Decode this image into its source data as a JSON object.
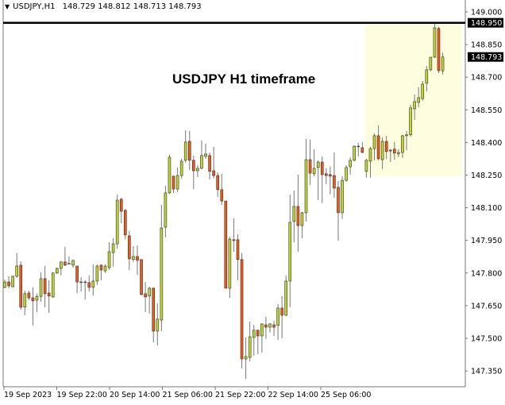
{
  "header": {
    "symbol": "USDJPY,H1",
    "open": "148.729",
    "high": "148.812",
    "low": "148.713",
    "close": "148.793"
  },
  "chart_data": {
    "type": "candlestick",
    "title": "USDJPY H1 timeframe",
    "symbol": "USDJPY",
    "timeframe": "H1",
    "ylim": [
      147.265,
      149.055
    ],
    "y_ticks": [
      "149.000",
      "148.850",
      "148.700",
      "148.550",
      "148.400",
      "148.250",
      "148.100",
      "147.950",
      "147.800",
      "147.650",
      "147.500",
      "147.350"
    ],
    "x_tick_labels": [
      "19 Sep 2023",
      "19 Sep 22:00",
      "20 Sep 14:00",
      "21 Sep 06:00",
      "21 Sep 22:00",
      "22 Sep 14:00",
      "25 Sep 06:00"
    ],
    "horizontal_line": {
      "price": 148.95,
      "label": "148.950",
      "color": "#000000"
    },
    "current_price_label": "148.793",
    "highlight_zone": {
      "price_low": 148.245,
      "price_high": 148.945,
      "bar_start": 90,
      "bar_end": 114,
      "color": "#fffde0"
    },
    "colors": {
      "bull": "#bfd72a",
      "bear": "#f05a14",
      "outline": "#333333",
      "wick": "#777777"
    },
    "ohlc": [
      [
        147.734,
        147.77,
        147.73,
        147.759
      ],
      [
        147.759,
        147.785,
        147.73,
        147.741
      ],
      [
        147.737,
        147.789,
        147.734,
        147.785
      ],
      [
        147.785,
        147.891,
        147.778,
        147.832
      ],
      [
        147.836,
        147.854,
        147.632,
        147.643
      ],
      [
        147.643,
        147.719,
        147.606,
        147.705
      ],
      [
        147.708,
        147.719,
        147.675,
        147.686
      ],
      [
        147.686,
        147.734,
        147.559,
        147.672
      ],
      [
        147.675,
        147.705,
        147.621,
        147.693
      ],
      [
        147.693,
        147.803,
        147.668,
        147.774
      ],
      [
        147.774,
        147.832,
        147.643,
        147.705
      ],
      [
        147.708,
        147.767,
        147.617,
        147.694
      ],
      [
        147.69,
        147.803,
        147.686,
        147.8
      ],
      [
        147.8,
        147.825,
        147.796,
        147.821
      ],
      [
        147.821,
        147.854,
        147.789,
        147.851
      ],
      [
        147.851,
        147.92,
        147.832,
        147.836
      ],
      [
        147.843,
        147.876,
        147.84,
        147.844
      ],
      [
        147.836,
        147.862,
        147.825,
        147.858
      ],
      [
        147.832,
        147.832,
        147.708,
        147.759
      ],
      [
        147.759,
        147.781,
        147.716,
        147.759
      ],
      [
        147.759,
        147.767,
        147.679,
        147.758
      ],
      [
        147.756,
        147.789,
        147.716,
        147.734
      ],
      [
        147.734,
        147.84,
        147.697,
        147.763
      ],
      [
        147.763,
        147.84,
        147.745,
        147.832
      ],
      [
        147.836,
        147.84,
        147.767,
        147.814
      ],
      [
        147.81,
        147.84,
        147.8,
        147.832
      ],
      [
        147.825,
        147.942,
        147.814,
        147.898
      ],
      [
        147.894,
        147.96,
        147.829,
        147.934
      ],
      [
        147.934,
        148.161,
        147.912,
        148.135
      ],
      [
        148.139,
        148.146,
        148.029,
        148.084
      ],
      [
        148.088,
        148.095,
        147.956,
        147.975
      ],
      [
        147.971,
        147.993,
        147.814,
        147.865
      ],
      [
        147.862,
        147.924,
        147.851,
        147.876
      ],
      [
        147.876,
        147.927,
        147.792,
        147.858
      ],
      [
        147.862,
        147.862,
        147.697,
        147.701
      ],
      [
        147.705,
        147.759,
        147.621,
        147.69
      ],
      [
        147.694,
        147.737,
        147.613,
        147.73
      ],
      [
        147.73,
        147.734,
        147.482,
        147.533
      ],
      [
        147.533,
        147.661,
        147.467,
        147.588
      ],
      [
        147.584,
        148.113,
        147.533,
        148.007
      ],
      [
        148.011,
        148.201,
        147.964,
        148.168
      ],
      [
        148.168,
        148.343,
        148.164,
        148.332
      ],
      [
        148.245,
        148.248,
        148.168,
        148.186
      ],
      [
        148.186,
        148.285,
        148.172,
        148.248
      ],
      [
        148.248,
        148.325,
        148.234,
        148.314
      ],
      [
        148.318,
        148.456,
        148.307,
        148.402
      ],
      [
        148.405,
        148.453,
        148.274,
        148.318
      ],
      [
        148.318,
        148.34,
        148.186,
        148.27
      ],
      [
        148.27,
        148.296,
        148.241,
        148.281
      ],
      [
        148.281,
        148.409,
        148.278,
        148.34
      ],
      [
        148.336,
        148.394,
        148.325,
        148.347
      ],
      [
        148.34,
        148.354,
        148.23,
        148.267
      ],
      [
        148.27,
        148.38,
        148.234,
        148.248
      ],
      [
        148.248,
        148.263,
        148.15,
        148.183
      ],
      [
        148.183,
        148.256,
        148.113,
        148.131
      ],
      [
        148.131,
        148.131,
        147.73,
        147.73
      ],
      [
        147.73,
        147.967,
        147.686,
        147.956
      ],
      [
        147.953,
        148.051,
        147.898,
        147.949
      ],
      [
        147.953,
        147.978,
        147.767,
        147.862
      ],
      [
        147.862,
        147.891,
        147.361,
        147.405
      ],
      [
        147.405,
        147.504,
        147.314,
        147.416
      ],
      [
        147.412,
        147.577,
        147.394,
        147.507
      ],
      [
        147.504,
        147.562,
        147.42,
        147.537
      ],
      [
        147.537,
        147.54,
        147.427,
        147.511
      ],
      [
        147.511,
        147.569,
        147.434,
        147.566
      ],
      [
        147.562,
        147.599,
        147.497,
        147.551
      ],
      [
        147.551,
        147.569,
        147.526,
        147.566
      ],
      [
        147.562,
        147.58,
        147.511,
        147.551
      ],
      [
        147.559,
        147.657,
        147.493,
        147.639
      ],
      [
        147.639,
        147.694,
        147.5,
        147.606
      ],
      [
        147.606,
        147.789,
        147.602,
        147.763
      ],
      [
        147.763,
        148.161,
        147.643,
        148.033
      ],
      [
        148.037,
        148.179,
        147.942,
        148.106
      ],
      [
        148.106,
        148.252,
        147.898,
        148.018
      ],
      [
        148.018,
        148.08,
        147.96,
        148.077
      ],
      [
        148.077,
        148.416,
        148.037,
        148.321
      ],
      [
        148.321,
        148.413,
        148.205,
        148.259
      ],
      [
        148.256,
        148.369,
        148.245,
        148.281
      ],
      [
        148.285,
        148.318,
        148.135,
        148.31
      ],
      [
        148.31,
        148.336,
        148.121,
        148.252
      ],
      [
        148.256,
        148.281,
        148.208,
        148.248
      ],
      [
        148.252,
        148.289,
        148.161,
        148.245
      ],
      [
        148.248,
        148.354,
        148.146,
        148.19
      ],
      [
        148.194,
        148.223,
        147.949,
        148.077
      ],
      [
        148.077,
        148.245,
        148.048,
        148.226
      ],
      [
        148.226,
        148.296,
        148.219,
        148.285
      ],
      [
        148.288,
        148.332,
        148.252,
        148.318
      ],
      [
        148.318,
        148.387,
        148.314,
        148.383
      ],
      [
        148.383,
        148.398,
        148.336,
        148.38
      ],
      [
        148.376,
        148.402,
        148.351,
        148.354
      ],
      [
        148.267,
        148.325,
        148.238,
        148.318
      ],
      [
        148.314,
        148.38,
        148.238,
        148.372
      ],
      [
        148.372,
        148.442,
        148.318,
        148.431
      ],
      [
        148.431,
        148.478,
        148.318,
        148.325
      ],
      [
        148.321,
        148.423,
        148.278,
        148.405
      ],
      [
        148.405,
        148.431,
        148.325,
        148.358
      ],
      [
        148.365,
        148.369,
        148.31,
        148.361
      ],
      [
        148.369,
        148.402,
        148.321,
        148.351
      ],
      [
        148.347,
        148.369,
        148.332,
        148.354
      ],
      [
        148.354,
        148.435,
        148.329,
        148.431
      ],
      [
        148.431,
        148.453,
        148.365,
        148.435
      ],
      [
        148.435,
        148.573,
        148.427,
        148.559
      ],
      [
        148.555,
        148.621,
        148.504,
        148.588
      ],
      [
        148.584,
        148.654,
        148.562,
        148.606
      ],
      [
        148.602,
        148.683,
        148.592,
        148.668
      ],
      [
        148.672,
        148.752,
        148.635,
        148.734
      ],
      [
        148.734,
        148.792,
        148.727,
        148.792
      ],
      [
        148.792,
        148.953,
        148.789,
        148.927
      ],
      [
        148.924,
        148.931,
        148.719,
        148.73
      ],
      [
        148.729,
        148.812,
        148.713,
        148.793
      ]
    ]
  }
}
